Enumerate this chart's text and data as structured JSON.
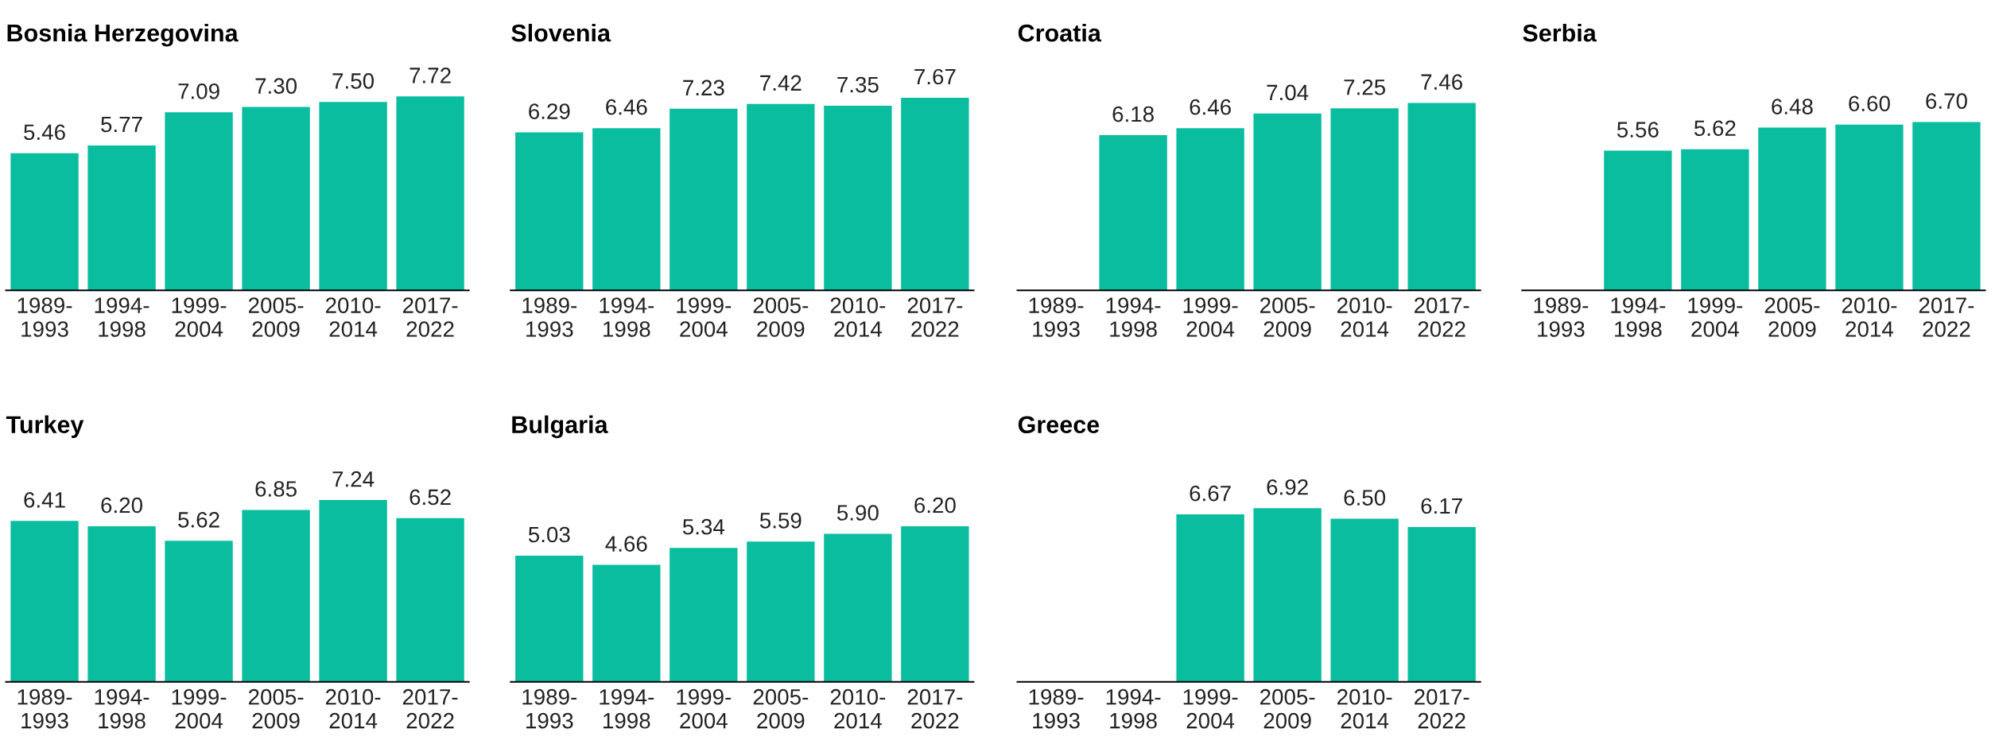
{
  "chart_data": [
    {
      "type": "bar",
      "title": "Bosnia Herzegovina",
      "categories": [
        "1989-\n1993",
        "1994-\n1998",
        "1999-\n2004",
        "2005-\n2009",
        "2010-\n2014",
        "2017-\n2022"
      ],
      "color": "#0abd9e",
      "values": [
        5.46,
        5.77,
        7.09,
        7.3,
        7.5,
        7.72
      ],
      "value_labels": [
        "5.46",
        "5.77",
        "7.09",
        "7.30",
        "7.50",
        "7.72"
      ],
      "grid": false,
      "legend": false
    },
    {
      "type": "bar",
      "title": "Slovenia",
      "categories": [
        "1989-\n1993",
        "1994-\n1998",
        "1999-\n2004",
        "2005-\n2009",
        "2010-\n2014",
        "2017-\n2022"
      ],
      "color": "#0abd9e",
      "values": [
        6.29,
        6.46,
        7.23,
        7.42,
        7.35,
        7.67
      ],
      "value_labels": [
        "6.29",
        "6.46",
        "7.23",
        "7.42",
        "7.35",
        "7.67"
      ],
      "grid": false,
      "legend": false
    },
    {
      "type": "bar",
      "title": "Croatia",
      "categories": [
        "1989-\n1993",
        "1994-\n1998",
        "1999-\n2004",
        "2005-\n2009",
        "2010-\n2014",
        "2017-\n2022"
      ],
      "color": "#0abd9e",
      "values": [
        null,
        6.18,
        6.46,
        7.04,
        7.25,
        7.46
      ],
      "value_labels": [
        null,
        "6.18",
        "6.46",
        "7.04",
        "7.25",
        "7.46"
      ],
      "grid": false,
      "legend": false
    },
    {
      "type": "bar",
      "title": "Serbia",
      "categories": [
        "1989-\n1993",
        "1994-\n1998",
        "1999-\n2004",
        "2005-\n2009",
        "2010-\n2014",
        "2017-\n2022"
      ],
      "color": "#0abd9e",
      "values": [
        null,
        5.56,
        5.62,
        6.48,
        6.6,
        6.7
      ],
      "value_labels": [
        null,
        "5.56",
        "5.62",
        "6.48",
        "6.60",
        "6.70"
      ],
      "grid": false,
      "legend": false
    },
    {
      "type": "bar",
      "title": "Turkey",
      "categories": [
        "1989-\n1993",
        "1994-\n1998",
        "1999-\n2004",
        "2005-\n2009",
        "2010-\n2014",
        "2017-\n2022"
      ],
      "color": "#0abd9e",
      "values": [
        6.41,
        6.2,
        5.62,
        6.85,
        7.24,
        6.52
      ],
      "value_labels": [
        "6.41",
        "6.20",
        "5.62",
        "6.85",
        "7.24",
        "6.52"
      ],
      "grid": false,
      "legend": false
    },
    {
      "type": "bar",
      "title": "Bulgaria",
      "categories": [
        "1989-\n1993",
        "1994-\n1998",
        "1999-\n2004",
        "2005-\n2009",
        "2010-\n2014",
        "2017-\n2022"
      ],
      "color": "#0abd9e",
      "values": [
        5.03,
        4.66,
        5.34,
        5.59,
        5.9,
        6.2
      ],
      "value_labels": [
        "5.03",
        "4.66",
        "5.34",
        "5.59",
        "5.90",
        "6.20"
      ],
      "grid": false,
      "legend": false
    },
    {
      "type": "bar",
      "title": "Greece",
      "categories": [
        "1989-\n1993",
        "1994-\n1998",
        "1999-\n2004",
        "2005-\n2009",
        "2010-\n2014",
        "2017-\n2022"
      ],
      "color": "#0abd9e",
      "values": [
        null,
        null,
        6.67,
        6.92,
        6.5,
        6.17
      ],
      "value_labels": [
        null,
        null,
        "6.67",
        "6.92",
        "6.50",
        "6.17"
      ],
      "grid": false,
      "legend": false
    }
  ]
}
